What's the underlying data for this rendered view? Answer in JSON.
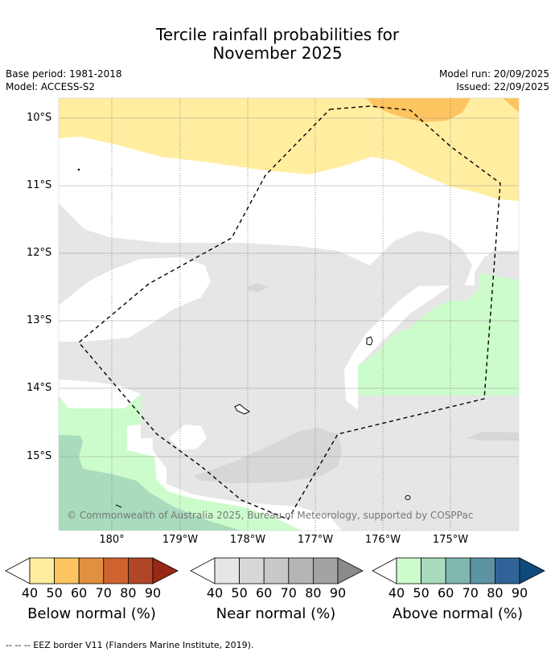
{
  "title_line1": "Tercile rainfall probabilities for",
  "title_line2": "November 2025",
  "base_period": "Base period: 1981-2018",
  "model": "Model: ACCESS-S2",
  "model_run": "Model run: 20/09/2025",
  "issued": "Issued: 22/09/2025",
  "lat_labels": [
    "10°S",
    "11°S",
    "12°S",
    "13°S",
    "14°S",
    "15°S"
  ],
  "lon_labels": [
    "180°",
    "179°W",
    "178°W",
    "177°W",
    "176°W",
    "175°W"
  ],
  "copyright": "© Commonwealth of Australia 2025, Bureau of Meteorology, supported by COSPPac",
  "legend": {
    "below": {
      "title": "Below normal (%)",
      "ticks": [
        "40",
        "50",
        "60",
        "70",
        "80",
        "90"
      ],
      "colors": [
        "#ffeea0",
        "#fec45f",
        "#e09040",
        "#d06430",
        "#b04626",
        "#992816"
      ]
    },
    "near": {
      "title": "Near normal (%)",
      "ticks": [
        "40",
        "50",
        "60",
        "70",
        "80",
        "90"
      ],
      "colors": [
        "#e6e6e6",
        "#d7d7d7",
        "#c8c8c8",
        "#b5b5b5",
        "#a3a3a3",
        "#8a8a8a"
      ]
    },
    "above": {
      "title": "Above normal (%)",
      "ticks": [
        "40",
        "50",
        "60",
        "70",
        "80",
        "90"
      ],
      "colors": [
        "#ccfccc",
        "#a8dcbc",
        "#80b8b0",
        "#5c94a4",
        "#306498",
        "#104a7c"
      ]
    }
  },
  "footnote": "--  --  -- EEZ border V11 (Flanders Marine Institute, 2019)."
}
